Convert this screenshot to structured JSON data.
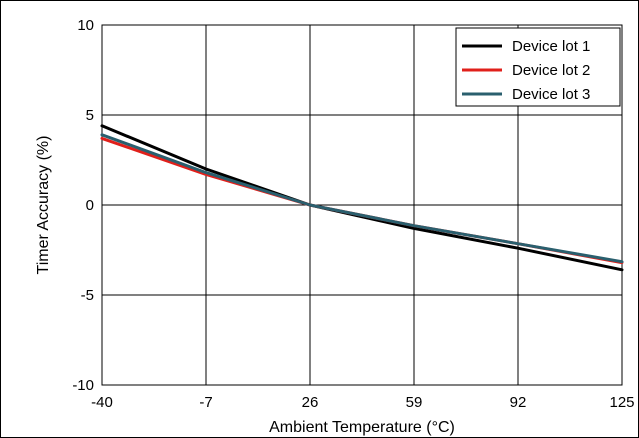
{
  "chart_data": {
    "type": "line",
    "title": "",
    "xlabel": "Ambient Temperature (°C)",
    "ylabel": "Timer Accuracy (%)",
    "xlim": [
      -40,
      125
    ],
    "ylim": [
      -10,
      10
    ],
    "x_ticks": [
      "-40",
      "-7",
      "26",
      "59",
      "92",
      "125"
    ],
    "y_ticks": [
      "10",
      "5",
      "0",
      "-5",
      "-10"
    ],
    "grid": true,
    "legend_position": "top-right",
    "series": [
      {
        "name": "Device lot 1",
        "color": "#000000",
        "x": [
          -40,
          -7,
          26,
          59,
          92,
          125
        ],
        "y": [
          4.4,
          2.0,
          0.0,
          -1.3,
          -2.4,
          -3.6
        ]
      },
      {
        "name": "Device lot 2",
        "color": "#e0201b",
        "x": [
          -40,
          -7,
          26,
          59,
          92,
          125
        ],
        "y": [
          3.7,
          1.7,
          0.0,
          -1.15,
          -2.15,
          -3.2
        ]
      },
      {
        "name": "Device lot 3",
        "color": "#2a5f6e",
        "x": [
          -40,
          -7,
          26,
          59,
          92,
          125
        ],
        "y": [
          3.9,
          1.8,
          0.0,
          -1.15,
          -2.15,
          -3.15
        ]
      }
    ]
  }
}
